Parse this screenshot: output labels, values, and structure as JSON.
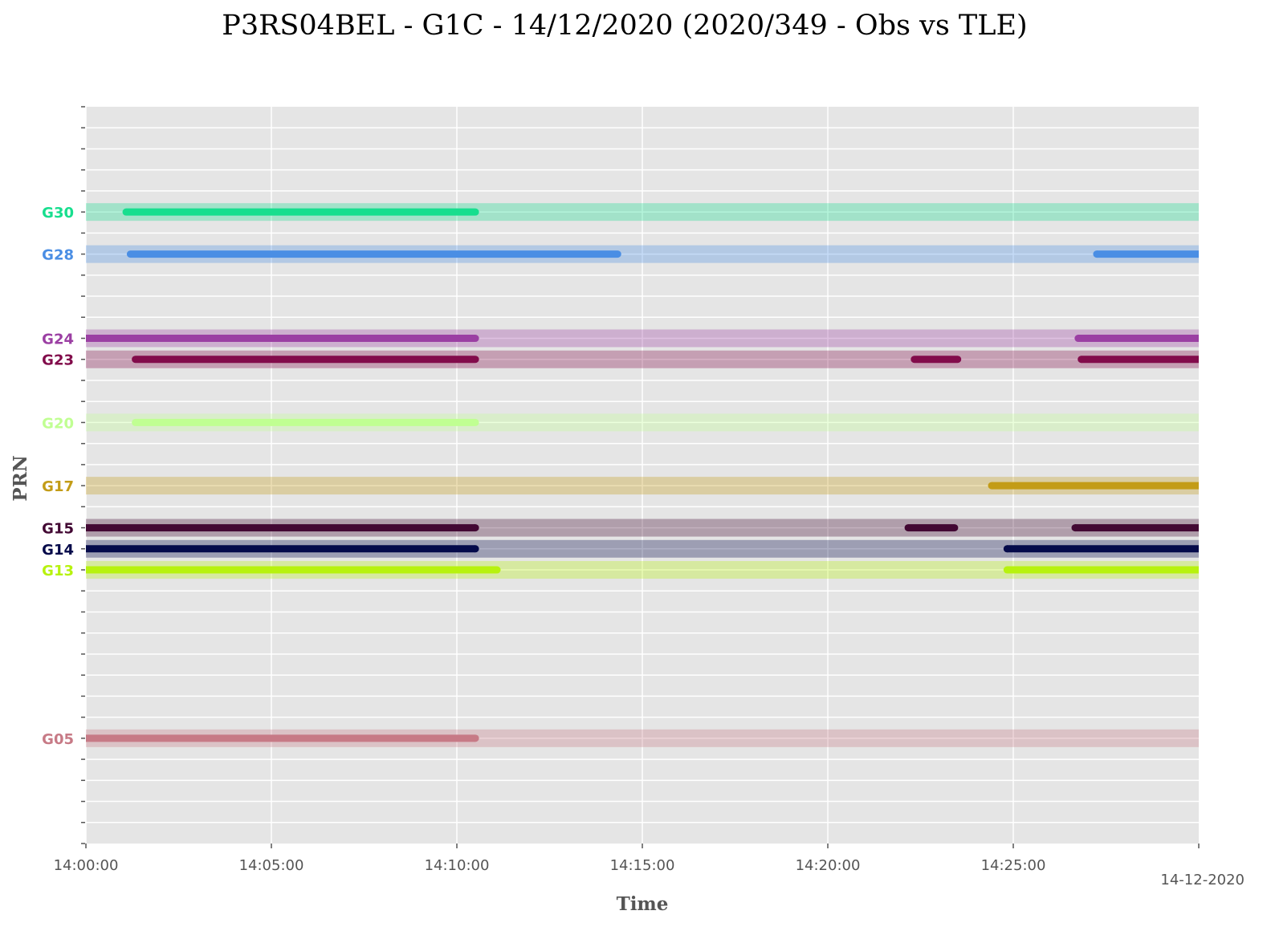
{
  "chart_data": {
    "type": "timeline",
    "title": "P3RS04BEL - G1C - 14/12/2020 (2020/349 - Obs vs TLE)",
    "xlabel": "Time",
    "ylabel": "PRN",
    "date_label": "14-12-2020",
    "x_range": [
      "14:00:00",
      "14:30:00"
    ],
    "x_ticks": [
      "14:00:00",
      "14:05:00",
      "14:10:00",
      "14:15:00",
      "14:20:00",
      "14:25:00"
    ],
    "y_range": [
      0,
      35
    ],
    "grid": true,
    "tle_band_span": [
      "14:00:00",
      "14:30:00"
    ],
    "series": [
      {
        "name": "G30",
        "prn": 30,
        "color": "#17de8e",
        "obs": [
          [
            "14:01:05",
            "14:10:30"
          ]
        ]
      },
      {
        "name": "G28",
        "prn": 28,
        "color": "#4a8ee4",
        "obs": [
          [
            "14:01:12",
            "14:14:20"
          ],
          [
            "14:27:15",
            "14:30:00"
          ]
        ]
      },
      {
        "name": "G24",
        "prn": 24,
        "color": "#9b3fa3",
        "obs": [
          [
            "14:00:00",
            "14:10:30"
          ],
          [
            "14:26:45",
            "14:30:00"
          ]
        ]
      },
      {
        "name": "G23",
        "prn": 23,
        "color": "#820c4b",
        "obs": [
          [
            "14:01:20",
            "14:10:30"
          ],
          [
            "14:22:20",
            "14:23:30"
          ],
          [
            "14:26:50",
            "14:30:00"
          ]
        ]
      },
      {
        "name": "G20",
        "prn": 20,
        "color": "#c0ff92",
        "obs": [
          [
            "14:01:20",
            "14:10:30"
          ]
        ]
      },
      {
        "name": "G17",
        "prn": 17,
        "color": "#c39c17",
        "obs": [
          [
            "14:24:25",
            "14:30:00"
          ]
        ]
      },
      {
        "name": "G15",
        "prn": 15,
        "color": "#420833",
        "obs": [
          [
            "14:00:00",
            "14:10:30"
          ],
          [
            "14:22:10",
            "14:23:25"
          ],
          [
            "14:26:40",
            "14:30:00"
          ]
        ]
      },
      {
        "name": "G14",
        "prn": 14,
        "color": "#050a4a",
        "obs": [
          [
            "14:00:00",
            "14:10:30"
          ],
          [
            "14:24:50",
            "14:30:00"
          ]
        ]
      },
      {
        "name": "G13",
        "prn": 13,
        "color": "#b7f20e",
        "obs": [
          [
            "14:00:00",
            "14:11:05"
          ],
          [
            "14:24:50",
            "14:30:00"
          ]
        ]
      },
      {
        "name": "G05",
        "prn": 5,
        "color": "#c77a86",
        "obs": [
          [
            "14:00:00",
            "14:10:30"
          ]
        ]
      }
    ]
  }
}
